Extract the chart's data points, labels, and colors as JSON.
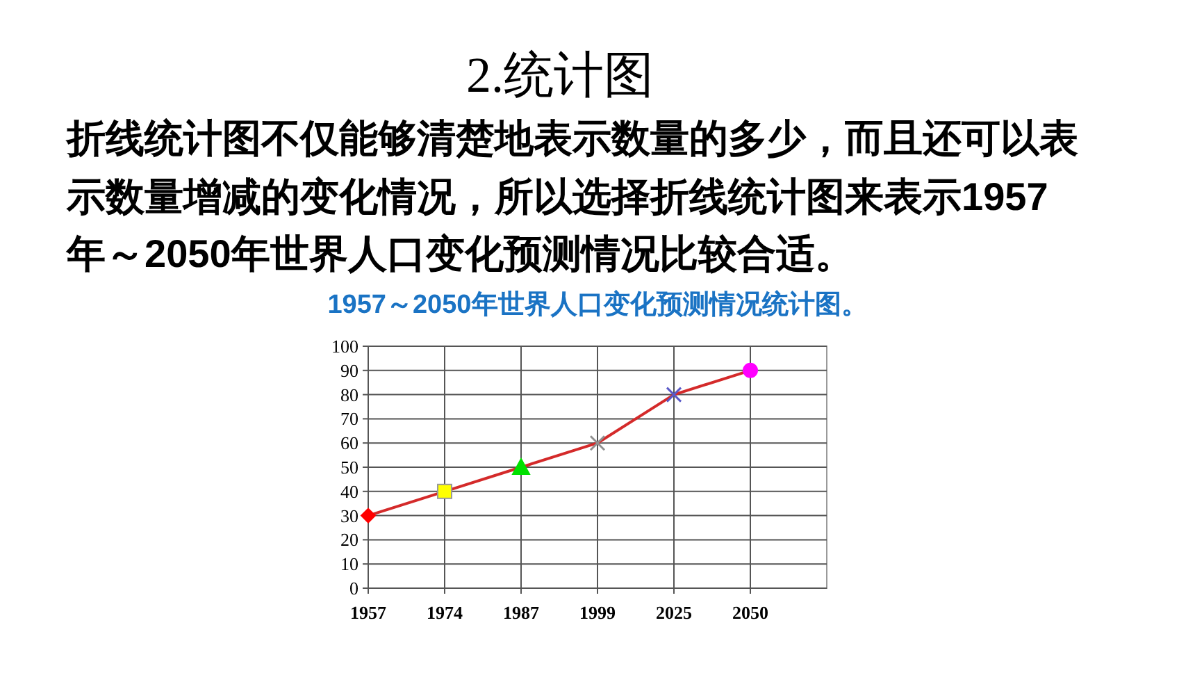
{
  "chart_data": {
    "type": "line",
    "title": "1957～2050年世界人口变化预测情况统计图。",
    "annotations": [
      "2.统计图",
      "折线统计图不仅能够清楚地表示数量的多少，而且还可以表示数量增减的变化情况，所以选择折线统计图来表示1957年～2050年世界人口变化预测情况比较合适。"
    ],
    "categories": [
      "1957",
      "1974",
      "1987",
      "1999",
      "2025",
      "2050"
    ],
    "series": [
      {
        "color": "#d42a2a",
        "marker": "none",
        "values": [
          30,
          40,
          50,
          60,
          80,
          90
        ]
      },
      {
        "type": "scatter",
        "color": "#ff0000",
        "marker": "diamond",
        "values": [
          30,
          null,
          null,
          null,
          null,
          null
        ]
      },
      {
        "type": "scatter",
        "color": "#ffff00",
        "marker": "square",
        "values": [
          null,
          40,
          null,
          null,
          null,
          null
        ]
      },
      {
        "type": "scatter",
        "color": "#00e000",
        "marker": "triangle",
        "values": [
          null,
          null,
          50,
          null,
          null,
          null
        ]
      },
      {
        "type": "scatter",
        "color": "#909090",
        "marker": "cross",
        "values": [
          null,
          null,
          null,
          60,
          null,
          null
        ]
      },
      {
        "type": "scatter",
        "color": "#5a5ac8",
        "marker": "cross",
        "values": [
          null,
          null,
          null,
          null,
          80,
          null
        ]
      },
      {
        "type": "scatter",
        "color": "#ff00ff",
        "marker": "circle",
        "values": [
          null,
          null,
          null,
          null,
          null,
          90
        ]
      }
    ],
    "ylim": [
      0,
      100
    ],
    "yticks": [
      0,
      10,
      20,
      30,
      40,
      50,
      60,
      70,
      80,
      90,
      100
    ],
    "grid": true
  }
}
